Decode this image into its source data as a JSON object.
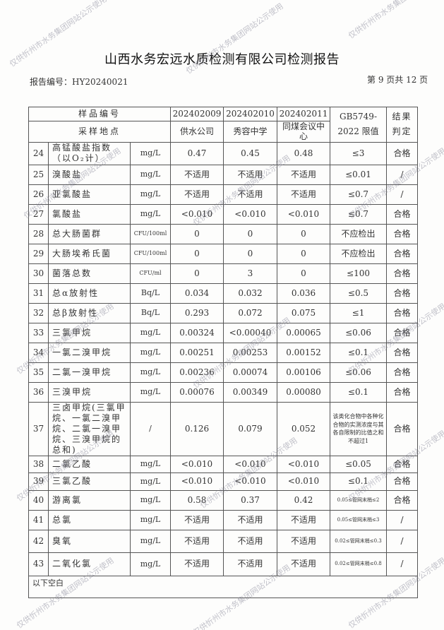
{
  "title": "山西水务宏远水质检测有限公司检测报告",
  "report_no": "报告编号：HY20240021",
  "page_info": "第 9 页共 12 页",
  "watermark": "仅供忻州市水务集团网站公示使用",
  "header": {
    "sample_id_label": "样品编号",
    "sample_ids": [
      "202402009",
      "202402010",
      "202402011"
    ],
    "location_label": "采样地点",
    "locations": [
      "供水公司",
      "秀容中学",
      "同煤会议中心"
    ],
    "limit_label": "GB5749-2022 限值",
    "result_label": "结果判定"
  },
  "rows": [
    {
      "no": "24",
      "name": "高锰酸盐指数（以O₂计）",
      "unit": "mg/L",
      "v": [
        "0.47",
        "0.45",
        "0.48"
      ],
      "limit": "≤3",
      "result": "合格"
    },
    {
      "no": "25",
      "name": "溴酸盐",
      "unit": "mg/L",
      "v": [
        "不适用",
        "不适用",
        "不适用"
      ],
      "limit": "≤0.01",
      "result": "/"
    },
    {
      "no": "26",
      "name": "亚氯酸盐",
      "unit": "mg/L",
      "v": [
        "不适用",
        "不适用",
        "不适用"
      ],
      "limit": "≤0.7",
      "result": "/"
    },
    {
      "no": "27",
      "name": "氯酸盐",
      "unit": "mg/L",
      "v": [
        "<0.010",
        "<0.010",
        "<0.010"
      ],
      "limit": "≤0.7",
      "result": "合格"
    },
    {
      "no": "28",
      "name": "总大肠菌群",
      "unit": "CFU/100ml",
      "v": [
        "0",
        "0",
        "0"
      ],
      "limit": "不应检出",
      "result": "合格"
    },
    {
      "no": "29",
      "name": "大肠埃希氏菌",
      "unit": "CFU/100ml",
      "v": [
        "0",
        "0",
        "0"
      ],
      "limit": "不应检出",
      "result": "合格"
    },
    {
      "no": "30",
      "name": "菌落总数",
      "unit": "CFU/ml",
      "v": [
        "0",
        "3",
        "0"
      ],
      "limit": "≤100",
      "result": "合格"
    },
    {
      "no": "31",
      "name": "总α放射性",
      "unit": "Bq/L",
      "v": [
        "0.034",
        "0.032",
        "0.036"
      ],
      "limit": "≤0.5",
      "result": "合格"
    },
    {
      "no": "32",
      "name": "总β放射性",
      "unit": "Bq/L",
      "v": [
        "0.293",
        "0.072",
        "0.075"
      ],
      "limit": "≤1",
      "result": "合格"
    },
    {
      "no": "33",
      "name": "三氯甲烷",
      "unit": "mg/L",
      "v": [
        "0.00324",
        "<0.00040",
        "0.00065"
      ],
      "limit": "≤0.06",
      "result": "合格"
    },
    {
      "no": "34",
      "name": "一氯二溴甲烷",
      "unit": "mg/L",
      "v": [
        "0.00251",
        "0.00253",
        "0.00152"
      ],
      "limit": "≤0.1",
      "result": "合格"
    },
    {
      "no": "35",
      "name": "二氯一溴甲烷",
      "unit": "mg/L",
      "v": [
        "0.00236",
        "0.00074",
        "0.00106"
      ],
      "limit": "≤0.06",
      "result": "合格"
    },
    {
      "no": "36",
      "name": "三溴甲烷",
      "unit": "mg/L",
      "v": [
        "0.00076",
        "0.00349",
        "0.00080"
      ],
      "limit": "≤0.1",
      "result": "合格"
    },
    {
      "no": "37",
      "name": "三卤甲烷(三氯甲烷、一氯二溴甲烷、二氯一溴甲烷、三溴甲烷的总和)",
      "unit": "/",
      "v": [
        "0.126",
        "0.079",
        "0.052"
      ],
      "limit": "该类化合物中各种化合物的实测浓度与其各自限制的比值之和不超过1",
      "result": "合格"
    },
    {
      "no": "38",
      "name": "二氯乙酸",
      "unit": "mg/L",
      "v": [
        "<0.010",
        "<0.010",
        "<0.010"
      ],
      "limit": "≤0.05",
      "result": "合格"
    },
    {
      "no": "39",
      "name": "三氯乙酸",
      "unit": "mg/L",
      "v": [
        "<0.010",
        "<0.010",
        "<0.010"
      ],
      "limit": "≤0.1",
      "result": "合格"
    },
    {
      "no": "40",
      "name": "游离氯",
      "unit": "mg/L",
      "v": [
        "0.58",
        "0.37",
        "0.42"
      ],
      "limit": "0.05≤管网末梢≤2",
      "result": "合格"
    },
    {
      "no": "41",
      "name": "总氯",
      "unit": "mg/L",
      "v": [
        "不适用",
        "不适用",
        "不适用"
      ],
      "limit": "0.05≤管网末梢≤3",
      "result": "/"
    },
    {
      "no": "42",
      "name": "臭氧",
      "unit": "mg/L",
      "v": [
        "不适用",
        "不适用",
        "不适用"
      ],
      "limit": "0.02≤管网末梢≤0.3",
      "result": "/"
    },
    {
      "no": "43",
      "name": "二氧化氯",
      "unit": "mg/L",
      "v": [
        "不适用",
        "不适用",
        "不适用"
      ],
      "limit": "0.02≤管网末梢≤0.8",
      "result": "/"
    }
  ],
  "footer": "以下空白"
}
